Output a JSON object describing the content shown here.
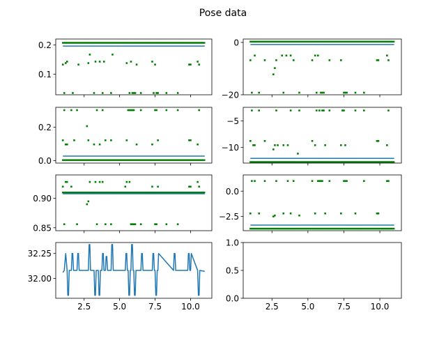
{
  "figure": {
    "title": "Pose data",
    "background": "#ffffff",
    "line_color": "#1f77b4",
    "marker_color": "#008000"
  },
  "chart_data": [
    {
      "id": "ax1",
      "type": "scatter",
      "title": "",
      "xlabel": "",
      "ylabel": "",
      "xlim": [
        0.5,
        11.5
      ],
      "ylim": [
        0.03,
        0.22
      ],
      "xticks": [
        2.5,
        5.0,
        7.5,
        10.0
      ],
      "xticklabels": [],
      "yticks": [
        0.1,
        0.2
      ],
      "yticklabels": [
        "0.1",
        "0.2"
      ],
      "baseline": 0.207,
      "ref_line": 0.196,
      "outliers": [
        [
          1.0,
          0.133
        ],
        [
          1.1,
          0.036
        ],
        [
          1.2,
          0.138
        ],
        [
          1.3,
          0.143
        ],
        [
          1.7,
          0.036
        ],
        [
          2.1,
          0.133
        ],
        [
          2.8,
          0.138
        ],
        [
          2.9,
          0.167
        ],
        [
          3.2,
          0.036
        ],
        [
          3.3,
          0.143
        ],
        [
          3.6,
          0.143
        ],
        [
          3.8,
          0.036
        ],
        [
          3.9,
          0.143
        ],
        [
          4.4,
          0.036
        ],
        [
          4.5,
          0.167
        ],
        [
          5.5,
          0.138
        ],
        [
          5.7,
          0.036
        ],
        [
          5.8,
          0.143
        ],
        [
          5.9,
          0.036
        ],
        [
          6.0,
          0.036
        ],
        [
          6.1,
          0.036
        ],
        [
          6.2,
          0.133
        ],
        [
          6.5,
          0.036
        ],
        [
          7.3,
          0.143
        ],
        [
          7.4,
          0.036
        ],
        [
          7.5,
          0.133
        ],
        [
          7.6,
          0.036
        ],
        [
          7.7,
          0.036
        ],
        [
          8.3,
          0.036
        ],
        [
          9.1,
          0.036
        ],
        [
          9.9,
          0.133
        ],
        [
          10.0,
          0.133
        ],
        [
          10.5,
          0.143
        ],
        [
          10.6,
          0.133
        ]
      ]
    },
    {
      "id": "ax2",
      "type": "scatter",
      "title": "",
      "xlabel": "",
      "ylabel": "",
      "xlim": [
        0.5,
        11.5
      ],
      "ylim": [
        -20.0,
        1.3
      ],
      "xticks": [
        2.5,
        5.0,
        7.5,
        10.0
      ],
      "xticklabels": [],
      "yticks": [
        -20,
        0
      ],
      "yticklabels": [
        "−20",
        "0"
      ],
      "baseline": 0.3,
      "ref_line": -0.8,
      "outliers": [
        [
          1.0,
          -6.8
        ],
        [
          1.1,
          -19.2
        ],
        [
          1.3,
          -5.0
        ],
        [
          1.6,
          -19.2
        ],
        [
          2.0,
          -6.8
        ],
        [
          2.6,
          -12.2
        ],
        [
          2.7,
          -9.8
        ],
        [
          2.8,
          -6.8
        ],
        [
          3.2,
          -5.0
        ],
        [
          3.3,
          -19.2
        ],
        [
          3.5,
          -5.0
        ],
        [
          3.8,
          -5.0
        ],
        [
          4.0,
          -6.8
        ],
        [
          4.4,
          -19.2
        ],
        [
          5.3,
          -6.8
        ],
        [
          5.5,
          -5.0
        ],
        [
          5.6,
          -19.2
        ],
        [
          5.7,
          -5.0
        ],
        [
          5.9,
          -19.2
        ],
        [
          6.0,
          -19.2
        ],
        [
          6.1,
          -19.2
        ],
        [
          6.5,
          -6.8
        ],
        [
          7.3,
          -6.8
        ],
        [
          7.5,
          -19.2
        ],
        [
          7.6,
          -19.2
        ],
        [
          7.7,
          -19.2
        ],
        [
          8.3,
          -19.2
        ],
        [
          8.9,
          -19.2
        ],
        [
          9.8,
          -6.8
        ],
        [
          9.9,
          -6.8
        ],
        [
          10.5,
          -5.0
        ],
        [
          10.6,
          -6.8
        ]
      ]
    },
    {
      "id": "ax3",
      "type": "scatter",
      "title": "",
      "xlabel": "",
      "ylabel": "",
      "xlim": [
        0.5,
        11.5
      ],
      "ylim": [
        -0.015,
        0.32
      ],
      "xticks": [
        2.5,
        5.0,
        7.5,
        10.0
      ],
      "xticklabels": [],
      "yticks": [
        0.0,
        0.2
      ],
      "yticklabels": [
        "0.0",
        "0.2"
      ],
      "baseline": 0.003,
      "ref_line": 0.027,
      "outliers": [
        [
          1.0,
          0.122
        ],
        [
          1.1,
          0.303
        ],
        [
          1.2,
          0.097
        ],
        [
          1.3,
          0.097
        ],
        [
          1.6,
          0.303
        ],
        [
          1.8,
          0.122
        ],
        [
          2.0,
          0.303
        ],
        [
          2.7,
          0.207
        ],
        [
          2.8,
          0.122
        ],
        [
          3.2,
          0.097
        ],
        [
          3.4,
          0.303
        ],
        [
          3.6,
          0.097
        ],
        [
          3.8,
          0.303
        ],
        [
          4.0,
          0.122
        ],
        [
          4.4,
          0.122
        ],
        [
          5.5,
          0.122
        ],
        [
          5.6,
          0.303
        ],
        [
          5.7,
          0.303
        ],
        [
          5.8,
          0.303
        ],
        [
          5.9,
          0.303
        ],
        [
          6.0,
          0.303
        ],
        [
          6.2,
          0.097
        ],
        [
          6.5,
          0.303
        ],
        [
          7.3,
          0.097
        ],
        [
          7.5,
          0.303
        ],
        [
          7.6,
          0.303
        ],
        [
          7.7,
          0.122
        ],
        [
          8.3,
          0.303
        ],
        [
          9.1,
          0.303
        ],
        [
          9.9,
          0.122
        ],
        [
          10.0,
          0.122
        ],
        [
          10.5,
          0.097
        ],
        [
          10.6,
          0.303
        ]
      ]
    },
    {
      "id": "ax4",
      "type": "scatter",
      "title": "",
      "xlabel": "",
      "ylabel": "",
      "xlim": [
        0.5,
        11.5
      ],
      "ylim": [
        -13.0,
        -2.4
      ],
      "xticks": [
        2.5,
        5.0,
        7.5,
        10.0
      ],
      "xticklabels": [],
      "yticks": [
        -10,
        -5
      ],
      "yticklabels": [
        "−10",
        "−5"
      ],
      "baseline": -12.8,
      "ref_line": -12.1,
      "outliers": [
        [
          1.0,
          -8.8
        ],
        [
          1.1,
          -3.0
        ],
        [
          1.2,
          -9.6
        ],
        [
          1.3,
          -9.6
        ],
        [
          1.6,
          -3.0
        ],
        [
          2.0,
          -8.8
        ],
        [
          2.6,
          -10.4
        ],
        [
          2.7,
          -9.6
        ],
        [
          2.8,
          -3.0
        ],
        [
          2.9,
          -9.6
        ],
        [
          3.3,
          -9.6
        ],
        [
          3.6,
          -9.6
        ],
        [
          3.8,
          -3.0
        ],
        [
          4.3,
          -11.2
        ],
        [
          4.4,
          -3.0
        ],
        [
          5.3,
          -8.8
        ],
        [
          5.5,
          -9.6
        ],
        [
          5.6,
          -3.0
        ],
        [
          5.8,
          -3.0
        ],
        [
          6.0,
          -3.0
        ],
        [
          6.1,
          -3.0
        ],
        [
          6.2,
          -9.6
        ],
        [
          6.5,
          -3.0
        ],
        [
          7.3,
          -9.6
        ],
        [
          7.4,
          -3.0
        ],
        [
          7.5,
          -3.0
        ],
        [
          7.6,
          -9.6
        ],
        [
          8.3,
          -3.0
        ],
        [
          8.9,
          -3.0
        ],
        [
          9.8,
          -8.8
        ],
        [
          9.9,
          -8.8
        ],
        [
          10.5,
          -9.6
        ],
        [
          10.6,
          -3.0
        ]
      ]
    },
    {
      "id": "ax5",
      "type": "scatter",
      "title": "",
      "xlabel": "",
      "ylabel": "",
      "xlim": [
        0.5,
        11.5
      ],
      "ylim": [
        0.845,
        0.94
      ],
      "xticks": [
        2.5,
        5.0,
        7.5,
        10.0
      ],
      "xticklabels": [],
      "yticks": [
        0.85,
        0.9
      ],
      "yticklabels": [
        "0.85",
        "0.90"
      ],
      "baseline": 0.91,
      "ref_line": 0.908,
      "outliers": [
        [
          1.0,
          0.92
        ],
        [
          1.1,
          0.856
        ],
        [
          1.2,
          0.928
        ],
        [
          1.3,
          0.928
        ],
        [
          1.6,
          0.92
        ],
        [
          2.0,
          0.856
        ],
        [
          2.7,
          0.89
        ],
        [
          2.8,
          0.895
        ],
        [
          2.9,
          0.928
        ],
        [
          3.3,
          0.928
        ],
        [
          3.4,
          0.856
        ],
        [
          3.6,
          0.928
        ],
        [
          3.8,
          0.928
        ],
        [
          4.0,
          0.856
        ],
        [
          4.4,
          0.856
        ],
        [
          5.4,
          0.92
        ],
        [
          5.5,
          0.928
        ],
        [
          5.7,
          0.928
        ],
        [
          5.8,
          0.856
        ],
        [
          5.9,
          0.856
        ],
        [
          6.0,
          0.856
        ],
        [
          6.1,
          0.856
        ],
        [
          6.5,
          0.856
        ],
        [
          7.3,
          0.92
        ],
        [
          7.5,
          0.856
        ],
        [
          7.6,
          0.856
        ],
        [
          7.7,
          0.92
        ],
        [
          8.3,
          0.856
        ],
        [
          9.1,
          0.856
        ],
        [
          9.9,
          0.92
        ],
        [
          10.0,
          0.92
        ],
        [
          10.5,
          0.928
        ],
        [
          10.6,
          0.92
        ]
      ]
    },
    {
      "id": "ax6",
      "type": "scatter",
      "title": "",
      "xlabel": "",
      "ylabel": "",
      "xlim": [
        0.5,
        11.5
      ],
      "ylim": [
        -3.9,
        1.6
      ],
      "xticks": [
        2.5,
        5.0,
        7.5,
        10.0
      ],
      "xticklabels": [],
      "yticks": [
        -2.5,
        0.0
      ],
      "yticklabels": [
        "−2.5",
        "0.0"
      ],
      "baseline": -3.7,
      "ref_line": -3.35,
      "outliers": [
        [
          1.0,
          -2.2
        ],
        [
          1.1,
          1.0
        ],
        [
          1.3,
          1.0
        ],
        [
          1.6,
          -2.2
        ],
        [
          2.0,
          1.0
        ],
        [
          2.6,
          -2.5
        ],
        [
          2.7,
          -2.4
        ],
        [
          2.8,
          1.0
        ],
        [
          3.3,
          -2.2
        ],
        [
          3.6,
          1.0
        ],
        [
          3.8,
          -2.2
        ],
        [
          4.0,
          1.0
        ],
        [
          4.4,
          -2.4
        ],
        [
          5.3,
          1.0
        ],
        [
          5.5,
          -2.2
        ],
        [
          5.7,
          1.0
        ],
        [
          5.8,
          1.0
        ],
        [
          5.9,
          1.0
        ],
        [
          6.0,
          1.0
        ],
        [
          6.2,
          -2.2
        ],
        [
          6.5,
          1.0
        ],
        [
          7.3,
          -2.2
        ],
        [
          7.5,
          1.0
        ],
        [
          7.6,
          1.0
        ],
        [
          7.7,
          1.0
        ],
        [
          8.3,
          -2.2
        ],
        [
          8.9,
          1.0
        ],
        [
          9.8,
          -2.2
        ],
        [
          9.9,
          -2.2
        ],
        [
          10.5,
          1.0
        ],
        [
          10.6,
          1.0
        ]
      ]
    },
    {
      "id": "ax7",
      "type": "line",
      "title": "",
      "xlabel": "",
      "ylabel": "",
      "xlim": [
        0.5,
        11.5
      ],
      "ylim": [
        31.8,
        32.36
      ],
      "xticks": [
        2.5,
        5.0,
        7.5,
        10.0
      ],
      "xticklabels": [
        "2.5",
        "5.0",
        "7.5",
        "10.0"
      ],
      "yticks": [
        32.0,
        32.25
      ],
      "yticklabels": [
        "32.00",
        "32.25"
      ],
      "series": [
        {
          "x": [
            1.0,
            1.1,
            1.2,
            1.3,
            1.35,
            1.4,
            1.45,
            1.6,
            1.65,
            1.7,
            1.75,
            2.0,
            2.05,
            2.1,
            2.15,
            2.8,
            2.85,
            2.9,
            2.95,
            3.2,
            3.25,
            3.3,
            3.35,
            3.5,
            3.55,
            3.6,
            3.65,
            3.75,
            3.8,
            3.85,
            3.9,
            4.0,
            4.05,
            4.1,
            4.15,
            4.4,
            4.45,
            4.5,
            4.55,
            5.4,
            5.45,
            5.5,
            5.55,
            5.6,
            5.65,
            5.7,
            5.75,
            5.8,
            5.85,
            5.9,
            5.95,
            6.0,
            6.05,
            6.1,
            6.15,
            6.5,
            6.55,
            6.6,
            6.65,
            7.3,
            7.35,
            7.4,
            7.45,
            7.5,
            7.55,
            7.6,
            7.65,
            7.7,
            7.75,
            8.8,
            8.85,
            8.9,
            8.95,
            9.8,
            9.85,
            9.9,
            9.95,
            10.0,
            10.05,
            10.5,
            10.55,
            10.6,
            10.65,
            11.0
          ],
          "y": [
            32.06,
            32.08,
            32.25,
            32.08,
            31.83,
            31.83,
            32.08,
            32.08,
            32.25,
            32.25,
            32.08,
            32.08,
            32.25,
            32.25,
            32.08,
            32.08,
            32.34,
            32.34,
            32.08,
            32.08,
            31.83,
            31.83,
            32.08,
            32.08,
            31.83,
            31.83,
            32.08,
            32.08,
            32.25,
            32.25,
            32.08,
            32.08,
            32.22,
            32.22,
            32.08,
            32.08,
            32.34,
            32.34,
            32.08,
            32.08,
            32.25,
            32.25,
            32.08,
            32.08,
            31.83,
            31.83,
            32.08,
            32.08,
            32.34,
            32.34,
            32.08,
            32.08,
            31.83,
            31.83,
            32.08,
            32.08,
            32.25,
            32.25,
            32.08,
            32.08,
            32.25,
            32.25,
            32.08,
            32.08,
            31.83,
            31.83,
            32.08,
            32.08,
            32.25,
            32.08,
            32.25,
            32.25,
            32.08,
            32.08,
            32.25,
            32.25,
            32.08,
            32.08,
            32.25,
            32.08,
            31.83,
            31.83,
            32.08,
            32.07
          ]
        }
      ]
    },
    {
      "id": "ax8",
      "type": "line",
      "title": "",
      "xlabel": "",
      "ylabel": "",
      "xlim": [
        0.5,
        11.5
      ],
      "ylim": [
        0.0,
        1.0
      ],
      "xticks": [
        2.5,
        5.0,
        7.5,
        10.0
      ],
      "xticklabels": [
        "2.5",
        "5.0",
        "7.5",
        "10.0"
      ],
      "yticks": [
        0.0,
        0.5,
        1.0
      ],
      "yticklabels": [
        "0.0",
        "0.5",
        "1.0"
      ],
      "series": []
    }
  ]
}
